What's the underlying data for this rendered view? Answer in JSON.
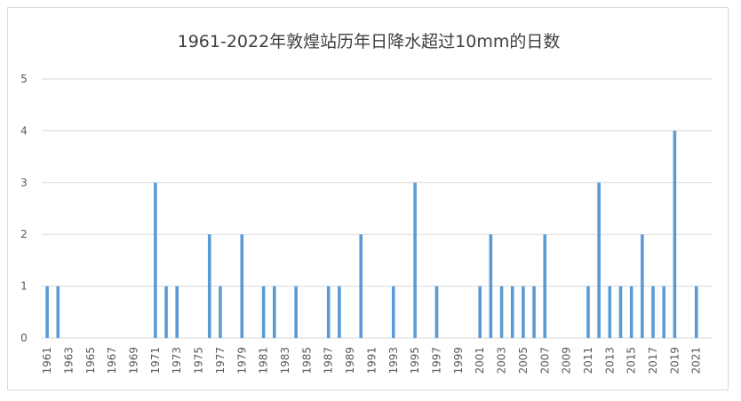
{
  "chart_data": {
    "type": "bar",
    "title": "1961-2022年敦煌站历年日降水超过10mm的日数",
    "xlabel": "",
    "ylabel": "",
    "ylim": [
      0,
      5
    ],
    "yticks": [
      0,
      1,
      2,
      3,
      4,
      5
    ],
    "grid": true,
    "legend": "none",
    "bar_color": "#5b9bd5",
    "grid_color": "#d9d9d9",
    "categories": [
      "1961",
      "1962",
      "1963",
      "1964",
      "1965",
      "1966",
      "1967",
      "1968",
      "1969",
      "1970",
      "1971",
      "1972",
      "1973",
      "1974",
      "1975",
      "1976",
      "1977",
      "1978",
      "1979",
      "1980",
      "1981",
      "1982",
      "1983",
      "1984",
      "1985",
      "1986",
      "1987",
      "1988",
      "1989",
      "1990",
      "1991",
      "1992",
      "1993",
      "1994",
      "1995",
      "1996",
      "1997",
      "1998",
      "1999",
      "2000",
      "2001",
      "2002",
      "2003",
      "2004",
      "2005",
      "2006",
      "2007",
      "2008",
      "2009",
      "2010",
      "2011",
      "2012",
      "2013",
      "2014",
      "2015",
      "2016",
      "2017",
      "2018",
      "2019",
      "2020",
      "2021",
      "2022"
    ],
    "tick_labels": [
      "1961",
      "1963",
      "1965",
      "1967",
      "1969",
      "1971",
      "1973",
      "1975",
      "1977",
      "1979",
      "1981",
      "1983",
      "1985",
      "1987",
      "1989",
      "1991",
      "1993",
      "1995",
      "1997",
      "1999",
      "2001",
      "2003",
      "2005",
      "2007",
      "2009",
      "2011",
      "2013",
      "2015",
      "2017",
      "2019",
      "2021"
    ],
    "values": [
      1,
      1,
      0,
      0,
      0,
      0,
      0,
      0,
      0,
      0,
      3,
      1,
      1,
      0,
      0,
      2,
      1,
      0,
      2,
      0,
      1,
      1,
      0,
      1,
      0,
      0,
      1,
      1,
      0,
      2,
      0,
      0,
      1,
      0,
      3,
      0,
      1,
      0,
      0,
      0,
      1,
      2,
      1,
      1,
      1,
      1,
      2,
      0,
      0,
      0,
      1,
      3,
      1,
      1,
      1,
      2,
      1,
      1,
      4,
      0,
      1,
      0
    ]
  }
}
